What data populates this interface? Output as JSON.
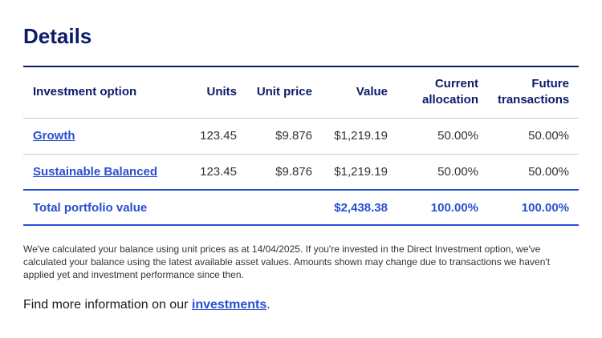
{
  "header": {
    "title": "Details"
  },
  "table": {
    "columns": [
      "Investment option",
      "Units",
      "Unit price",
      "Value",
      "Current allocation",
      "Future transactions"
    ],
    "rows": [
      [
        "Growth",
        "123.45",
        "$9.876",
        "$1,219.19",
        "50.00%",
        "50.00%"
      ],
      [
        "Sustainable Balanced",
        "123.45",
        "$9.876",
        "$1,219.19",
        "50.00%",
        "50.00%"
      ]
    ],
    "total": {
      "label": "Total portfolio value",
      "value": "$2,438.38",
      "current_allocation": "100.00%",
      "future_transactions": "100.00%"
    }
  },
  "note": "We've calculated your balance using unit prices as at 14/04/2025. If you're invested in the Direct Investment option, we've calculated your balance using the latest available asset values. Amounts shown may change due to transactions we haven't applied yet and investment performance since then.",
  "more_info": {
    "prefix": "Find more information on our ",
    "link": "investments",
    "suffix": "."
  }
}
